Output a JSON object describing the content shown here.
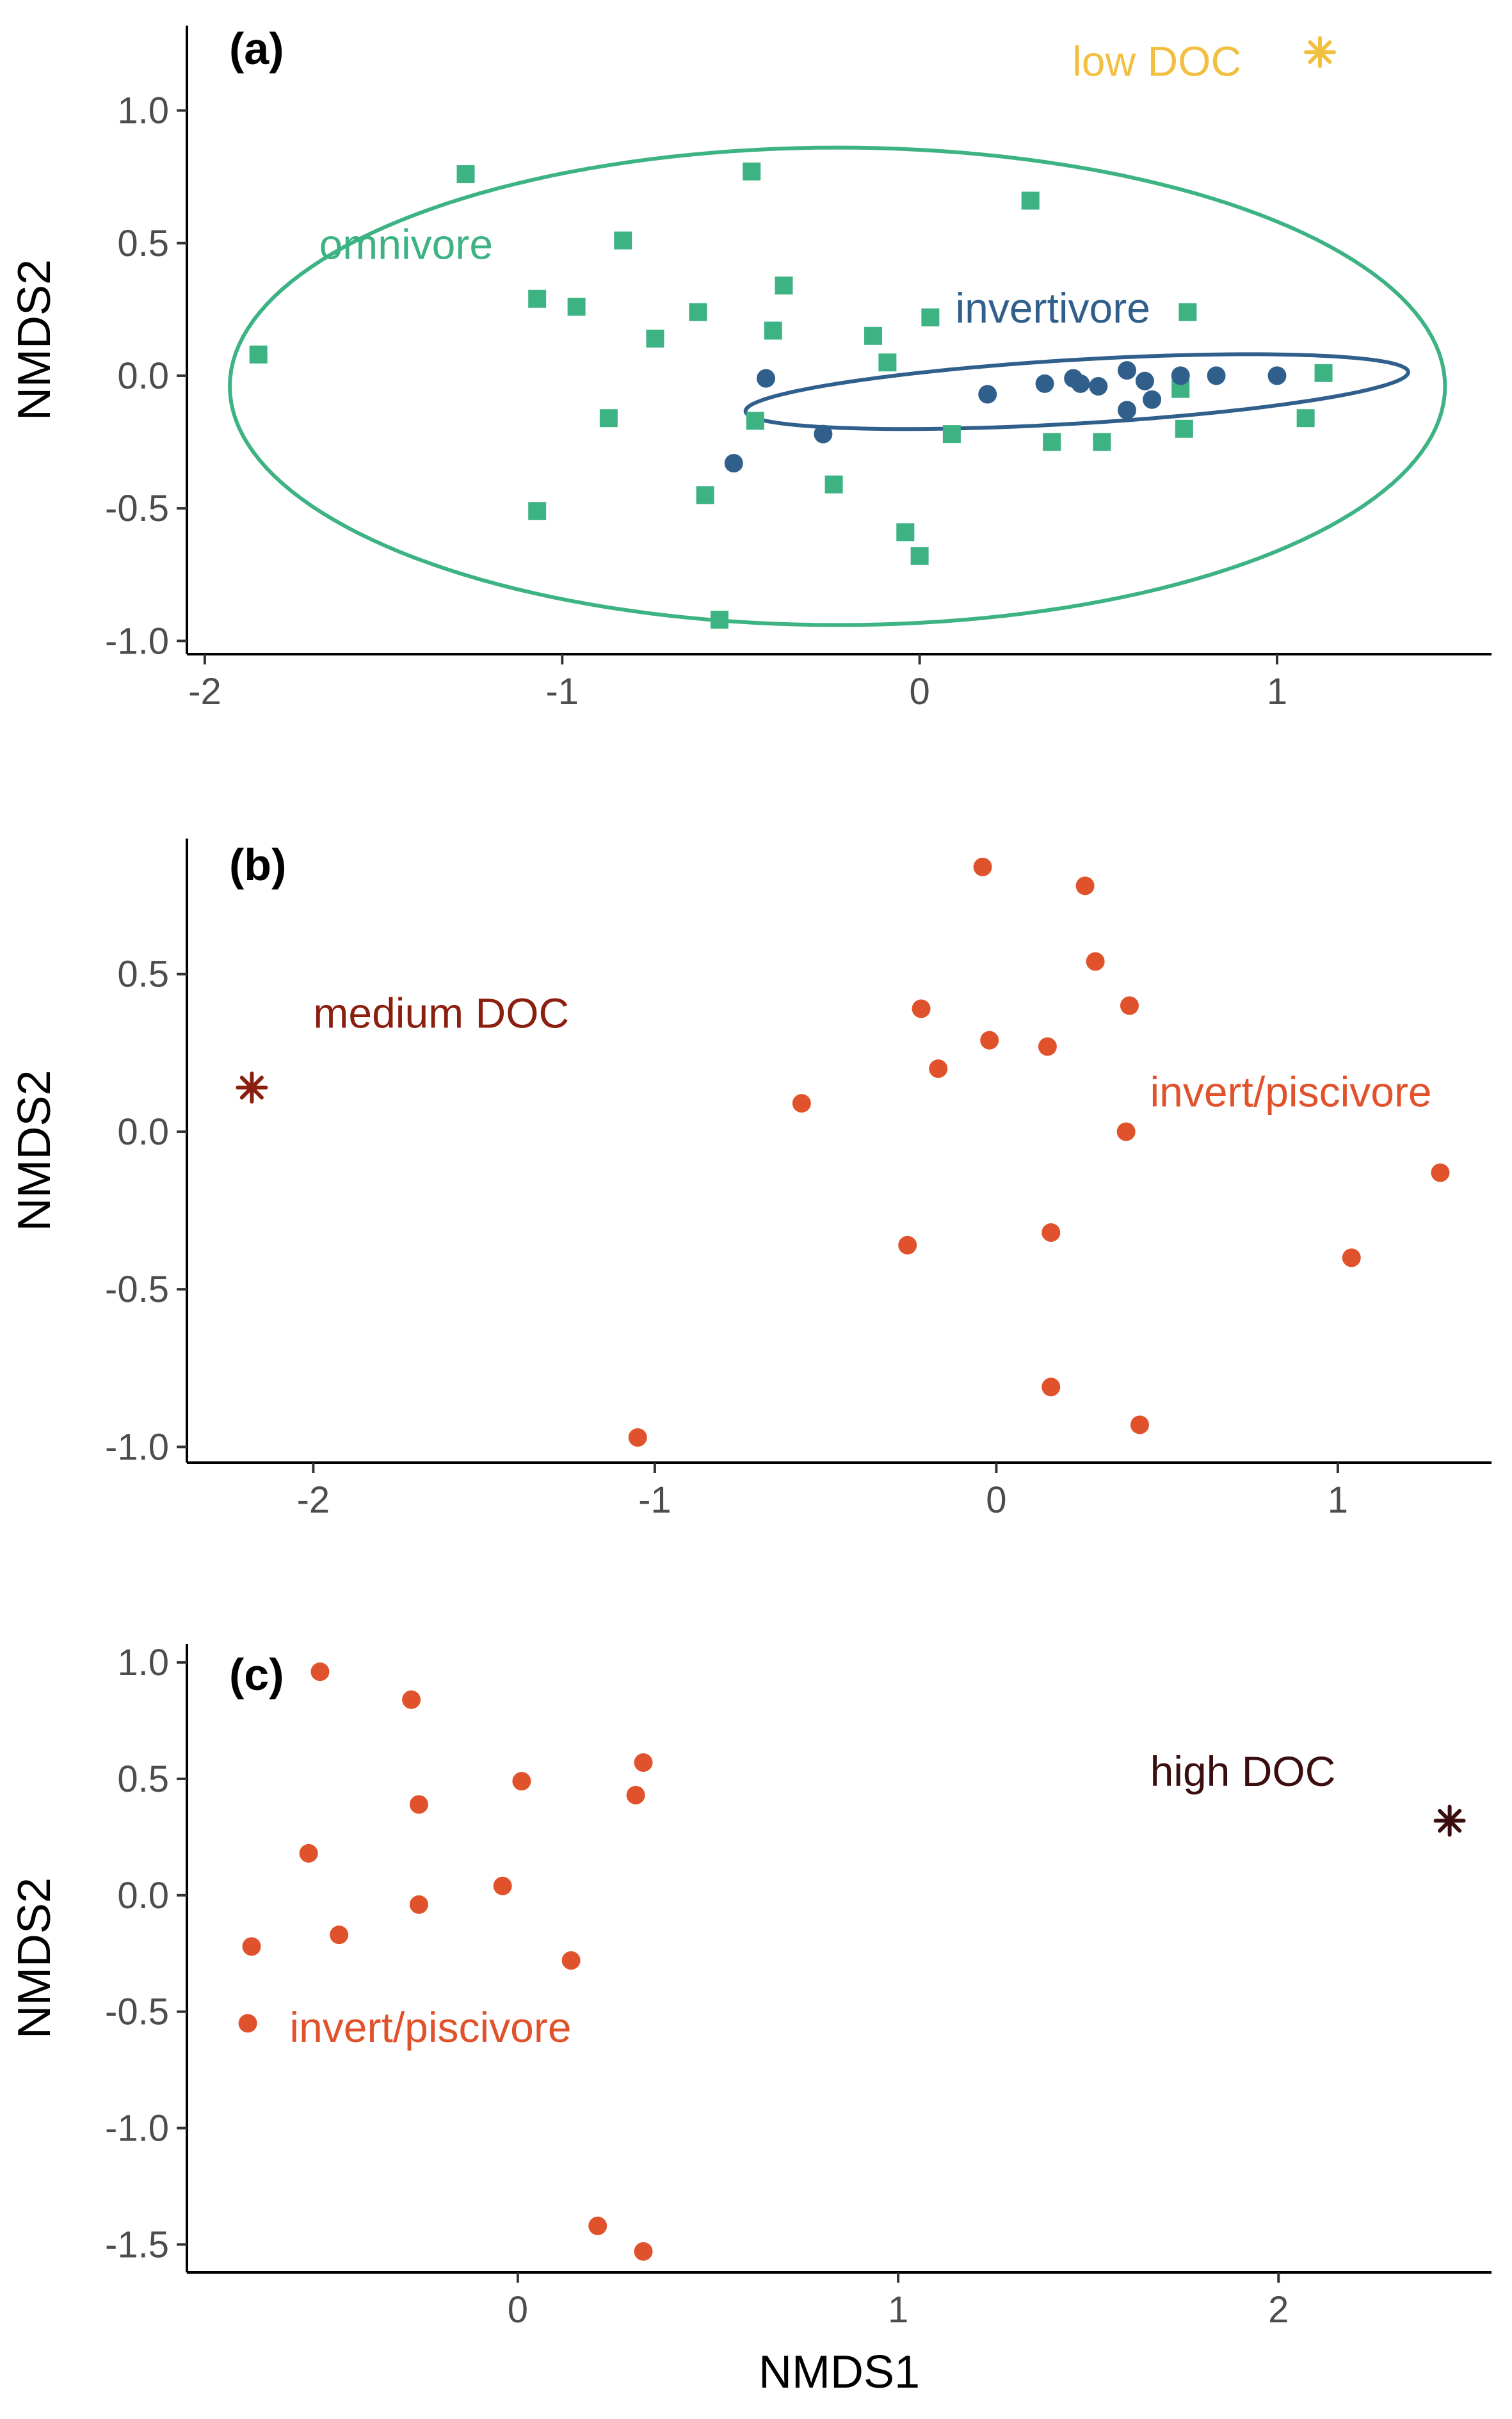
{
  "colors": {
    "omnivore": "#3db384",
    "invertivore": "#2f5f8a",
    "invert_piscivore": "#e0522b",
    "low_doc": "#f2c040",
    "medium_doc": "#8b1f0f",
    "high_doc": "#3a0e0e",
    "axis": "#000000",
    "tick_label": "#4d4d4d"
  },
  "chart_data": [
    {
      "type": "scatter",
      "panel_label": "(a)",
      "xlabel": "",
      "ylabel": "NMDS2",
      "xlim": [
        -2.05,
        1.6
      ],
      "ylim": [
        -1.05,
        1.32
      ],
      "xticks": [
        -2,
        -1,
        0,
        1
      ],
      "xtick_labels": [
        "-2",
        "-1",
        "0",
        "1"
      ],
      "yticks": [
        -1.0,
        -0.5,
        0.0,
        0.5,
        1.0
      ],
      "ytick_labels": [
        "-1.0",
        "-0.5",
        "0.0",
        "0.5",
        "1.0"
      ],
      "grid": false,
      "series": [
        {
          "name": "omnivore",
          "marker": "square",
          "color": "#3db384",
          "points": [
            [
              -1.85,
              0.08
            ],
            [
              -1.27,
              0.76
            ],
            [
              -1.07,
              0.29
            ],
            [
              -1.07,
              -0.51
            ],
            [
              -0.96,
              0.26
            ],
            [
              -0.87,
              -0.16
            ],
            [
              -0.83,
              0.51
            ],
            [
              -0.74,
              0.14
            ],
            [
              -0.62,
              0.24
            ],
            [
              -0.6,
              -0.45
            ],
            [
              -0.56,
              -0.92
            ],
            [
              -0.47,
              0.77
            ],
            [
              -0.46,
              -0.17
            ],
            [
              -0.41,
              0.17
            ],
            [
              -0.38,
              0.34
            ],
            [
              -0.24,
              -0.41
            ],
            [
              -0.13,
              0.15
            ],
            [
              -0.09,
              0.05
            ],
            [
              -0.04,
              -0.59
            ],
            [
              0.0,
              -0.68
            ],
            [
              0.03,
              0.22
            ],
            [
              0.09,
              -0.22
            ],
            [
              0.31,
              0.66
            ],
            [
              0.37,
              -0.25
            ],
            [
              0.51,
              -0.25
            ],
            [
              0.73,
              -0.05
            ],
            [
              0.74,
              -0.2
            ],
            [
              0.75,
              0.24
            ],
            [
              1.08,
              -0.16
            ],
            [
              1.13,
              0.01
            ]
          ]
        },
        {
          "name": "invertivore",
          "marker": "circle",
          "color": "#2f5f8a",
          "points": [
            [
              -0.52,
              -0.33
            ],
            [
              -0.43,
              -0.01
            ],
            [
              -0.27,
              -0.22
            ],
            [
              0.19,
              -0.07
            ],
            [
              0.35,
              -0.03
            ],
            [
              0.43,
              -0.01
            ],
            [
              0.45,
              -0.03
            ],
            [
              0.5,
              -0.04
            ],
            [
              0.58,
              0.02
            ],
            [
              0.58,
              -0.13
            ],
            [
              0.63,
              -0.02
            ],
            [
              0.65,
              -0.09
            ],
            [
              0.73,
              0.0
            ],
            [
              0.83,
              0.0
            ],
            [
              1.0,
              0.0
            ]
          ]
        }
      ],
      "ellipses": [
        {
          "name": "omnivore",
          "color": "#3db384",
          "center": [
            -0.23,
            -0.04
          ],
          "semi_axes": [
            1.7,
            0.9
          ],
          "angle_deg": 0
        },
        {
          "name": "invertivore",
          "color": "#2f5f8a",
          "center": [
            0.44,
            -0.06
          ],
          "semi_axes": [
            0.93,
            0.12
          ],
          "angle_deg": 4.6
        }
      ],
      "site_marker": {
        "label": "low DOC",
        "x": 1.12,
        "y": 1.22,
        "color": "#f2c040"
      },
      "annotations": [
        {
          "text": "omnivore",
          "x": -1.68,
          "y": 0.44,
          "anchor": "start",
          "color": "#3db384"
        },
        {
          "text": "invertivore",
          "x": 0.1,
          "y": 0.2,
          "anchor": "start",
          "color": "#2f5f8a"
        },
        {
          "text": "low DOC",
          "x": 0.9,
          "y": 1.13,
          "anchor": "end",
          "color": "#f2c040"
        }
      ]
    },
    {
      "type": "scatter",
      "panel_label": "(b)",
      "xlabel": "",
      "ylabel": "NMDS2",
      "xlim": [
        -2.37,
        1.45
      ],
      "ylim": [
        -1.05,
        0.93
      ],
      "xticks": [
        -2,
        -1,
        0,
        1
      ],
      "xtick_labels": [
        "-2",
        "-1",
        "0",
        "1"
      ],
      "yticks": [
        -1.0,
        -0.5,
        0.0,
        0.5
      ],
      "ytick_labels": [
        "-1.0",
        "-0.5",
        "0.0",
        "0.5"
      ],
      "grid": false,
      "series": [
        {
          "name": "invert/piscivore",
          "marker": "circle",
          "color": "#e0522b",
          "points": [
            [
              -1.05,
              -0.97
            ],
            [
              -0.57,
              0.09
            ],
            [
              -0.26,
              -0.36
            ],
            [
              -0.22,
              0.39
            ],
            [
              -0.17,
              0.2
            ],
            [
              -0.04,
              0.84
            ],
            [
              -0.02,
              0.29
            ],
            [
              0.15,
              0.27
            ],
            [
              0.16,
              -0.32
            ],
            [
              0.16,
              -0.81
            ],
            [
              0.26,
              0.78
            ],
            [
              0.29,
              0.54
            ],
            [
              0.38,
              0.0
            ],
            [
              0.39,
              0.4
            ],
            [
              0.42,
              -0.93
            ],
            [
              1.04,
              -0.4
            ],
            [
              1.3,
              -0.13
            ]
          ]
        }
      ],
      "site_marker": {
        "label": "medium DOC",
        "x": -2.18,
        "y": 0.14,
        "color": "#8b1f0f"
      },
      "annotations": [
        {
          "text": "medium DOC",
          "x": -2.0,
          "y": 0.33,
          "anchor": "start",
          "color": "#8b1f0f"
        },
        {
          "text": "invert/piscivore",
          "x": 0.45,
          "y": 0.08,
          "anchor": "start",
          "color": "#e0522b"
        }
      ]
    },
    {
      "type": "scatter",
      "panel_label": "(c)",
      "xlabel": "NMDS1",
      "ylabel": "NMDS2",
      "xlim": [
        -0.87,
        2.56
      ],
      "ylim": [
        -1.62,
        1.08
      ],
      "xticks": [
        0,
        1,
        2
      ],
      "xtick_labels": [
        "0",
        "1",
        "2"
      ],
      "yticks": [
        -1.5,
        -1.0,
        -0.5,
        0.0,
        0.5,
        1.0
      ],
      "ytick_labels": [
        "-1.5",
        "-1.0",
        "-0.5",
        "0.0",
        "0.5",
        "1.0"
      ],
      "grid": false,
      "series": [
        {
          "name": "invert/piscivore",
          "marker": "circle",
          "color": "#e0522b",
          "points": [
            [
              -0.71,
              -0.55
            ],
            [
              -0.7,
              -0.22
            ],
            [
              -0.55,
              0.18
            ],
            [
              -0.52,
              0.96
            ],
            [
              -0.47,
              -0.17
            ],
            [
              -0.28,
              0.84
            ],
            [
              -0.26,
              0.39
            ],
            [
              -0.26,
              -0.04
            ],
            [
              -0.04,
              0.04
            ],
            [
              0.01,
              0.49
            ],
            [
              0.14,
              -0.28
            ],
            [
              0.21,
              -1.42
            ],
            [
              0.31,
              0.43
            ],
            [
              0.33,
              0.57
            ],
            [
              0.33,
              -1.53
            ]
          ]
        }
      ],
      "site_marker": {
        "label": "high DOC",
        "x": 2.45,
        "y": 0.32,
        "color": "#3a0e0e"
      },
      "annotations": [
        {
          "text": "high DOC",
          "x": 2.15,
          "y": 0.47,
          "anchor": "end",
          "color": "#3a0e0e"
        },
        {
          "text": "invert/piscivore",
          "x": -0.6,
          "y": -0.63,
          "anchor": "start",
          "color": "#e0522b"
        }
      ]
    }
  ]
}
